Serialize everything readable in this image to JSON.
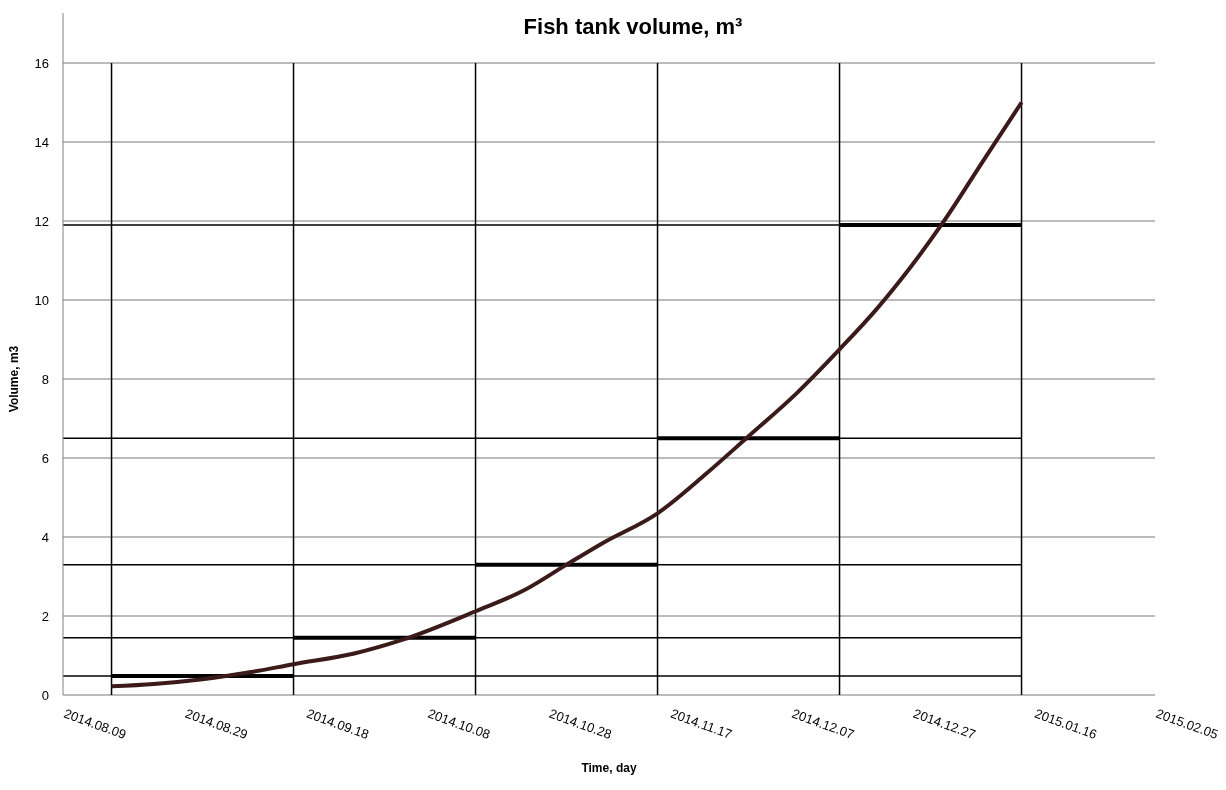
{
  "chart_data": {
    "type": "line",
    "title": "Fish tank volume, m³",
    "xlabel": "Time, day",
    "ylabel": "Volume, m3",
    "xlim": [
      "2014-08-09",
      "2015-02-05"
    ],
    "xticks": [
      {
        "value": "2014-08-09",
        "label": "2014.08.09"
      },
      {
        "value": "2014-08-29",
        "label": "2014.08.29"
      },
      {
        "value": "2014-09-18",
        "label": "2014.09.18"
      },
      {
        "value": "2014-10-08",
        "label": "2014.10.08"
      },
      {
        "value": "2014-10-28",
        "label": "2014.10.28"
      },
      {
        "value": "2014-11-17",
        "label": "2014.11.17"
      },
      {
        "value": "2014-12-07",
        "label": "2014.12.07"
      },
      {
        "value": "2014-12-27",
        "label": "2014.12.27"
      },
      {
        "value": "2015-01-16",
        "label": "2015.01.16"
      },
      {
        "value": "2015-02-05",
        "label": "2015.02.05"
      }
    ],
    "ylim": [
      0,
      16
    ],
    "yticks": [
      0,
      2,
      4,
      6,
      8,
      10,
      12,
      14,
      16
    ],
    "grid": "y",
    "series": [
      {
        "color": "#3b1a1a",
        "x": [
          "2014-08-17",
          "2014-08-24",
          "2014-09-01",
          "2014-09-09",
          "2014-09-16",
          "2014-09-26",
          "2014-10-04",
          "2014-10-16",
          "2014-10-24",
          "2014-10-31",
          "2014-11-06",
          "2014-11-15",
          "2014-11-23",
          "2014-11-30",
          "2014-12-08",
          "2014-12-15",
          "2014-12-21",
          "2015-01-01",
          "2015-01-08",
          "2015-01-14"
        ],
        "values": [
          0.22,
          0.28,
          0.4,
          0.58,
          0.78,
          1.05,
          1.4,
          2.12,
          2.65,
          3.3,
          3.85,
          4.6,
          5.6,
          6.55,
          7.65,
          8.75,
          9.75,
          11.95,
          13.6,
          15
        ]
      },
      {
        "color": "#000000",
        "x": [
          "2014-08-17",
          "2014-09-16"
        ],
        "values": [
          0.48,
          0.48
        ]
      },
      {
        "color": "#000000",
        "x": [
          "2014-09-16",
          "2014-10-16"
        ],
        "values": [
          1.45,
          1.45
        ]
      },
      {
        "color": "#000000",
        "x": [
          "2014-10-16",
          "2014-11-15"
        ],
        "values": [
          3.3,
          3.3
        ]
      },
      {
        "color": "#000000",
        "x": [
          "2014-11-15",
          "2014-12-15"
        ],
        "values": [
          6.5,
          6.5
        ]
      },
      {
        "color": "#000000",
        "x": [
          "2014-12-15",
          "2015-01-14"
        ],
        "values": [
          11.9,
          11.9
        ]
      }
    ],
    "ref_lines": [
      {
        "axis": "x",
        "value": "2014-08-17",
        "color": "#000000"
      },
      {
        "axis": "x",
        "value": "2014-09-16",
        "color": "#000000"
      },
      {
        "axis": "x",
        "value": "2014-10-16",
        "color": "#000000"
      },
      {
        "axis": "x",
        "value": "2014-11-15",
        "color": "#000000"
      },
      {
        "axis": "x",
        "value": "2014-12-15",
        "color": "#000000"
      },
      {
        "axis": "x",
        "value": "2015-01-14",
        "color": "#000000"
      },
      {
        "axis": "y",
        "value": 0.48,
        "color": "#000000"
      },
      {
        "axis": "y",
        "value": 1.45,
        "color": "#000000"
      },
      {
        "axis": "y",
        "value": 3.3,
        "color": "#000000"
      },
      {
        "axis": "y",
        "value": 6.5,
        "color": "#000000"
      },
      {
        "axis": "y",
        "value": 11.9,
        "color": "#000000"
      }
    ]
  }
}
